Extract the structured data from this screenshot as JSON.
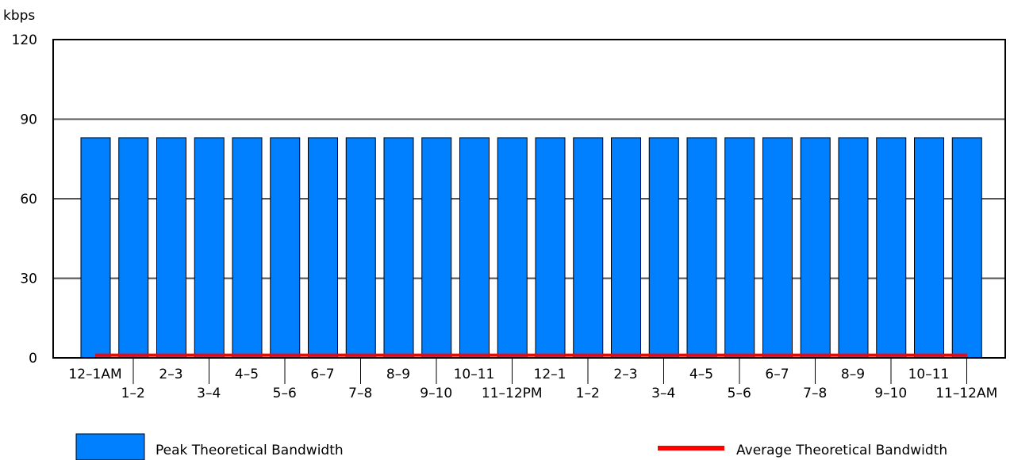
{
  "chart_data": {
    "type": "bar",
    "ylabel": "kbps",
    "ylim": [
      0,
      120
    ],
    "yticks": [
      0,
      30,
      60,
      90,
      120
    ],
    "grid": true,
    "legend_position": "bottom",
    "categories": [
      "12–1AM",
      "1–2",
      "2–3",
      "3–4",
      "4–5",
      "5–6",
      "6–7",
      "7–8",
      "8–9",
      "9–10",
      "10–11",
      "11–12PM",
      "12–1",
      "1–2",
      "2–3",
      "3–4",
      "4–5",
      "5–6",
      "6–7",
      "7–8",
      "8–9",
      "9–10",
      "10–11",
      "11–12AM"
    ],
    "series": [
      {
        "name": "Peak Theoretical Bandwidth",
        "type": "bar",
        "color": "#0080ff",
        "values": [
          83,
          83,
          83,
          83,
          83,
          83,
          83,
          83,
          83,
          83,
          83,
          83,
          83,
          83,
          83,
          83,
          83,
          83,
          83,
          83,
          83,
          83,
          83,
          83
        ]
      },
      {
        "name": "Average Theoretical Bandwidth",
        "type": "line",
        "color": "#ff0000",
        "values": [
          1,
          1,
          1,
          1,
          1,
          1,
          1,
          1,
          1,
          1,
          1,
          1,
          1,
          1,
          1,
          1,
          1,
          1,
          1,
          1,
          1,
          1,
          1,
          1
        ]
      }
    ]
  }
}
